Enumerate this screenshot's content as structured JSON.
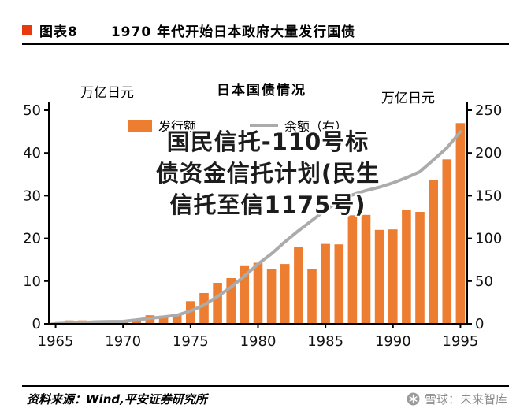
{
  "header": {
    "tag": "图表8",
    "title": "1970 年代开始日本政府大量发行国债"
  },
  "watermark": {
    "lines": [
      "国民信托-110号标",
      "债资金信托计划(民生",
      "信托至信1175号)"
    ]
  },
  "footer": {
    "source": "资料来源：Wind,平安证券研究所",
    "brand": "雪球：未来智库",
    "brand_icon": "xueqiu-snowball-icon"
  },
  "chart_data": {
    "type": "bar+line",
    "title": "日本国债情况",
    "grid": false,
    "legend_position": "top",
    "x": [
      1965,
      1966,
      1967,
      1968,
      1969,
      1970,
      1971,
      1972,
      1973,
      1974,
      1975,
      1976,
      1977,
      1978,
      1979,
      1980,
      1981,
      1982,
      1983,
      1984,
      1985,
      1986,
      1987,
      1988,
      1989,
      1990,
      1991,
      1992,
      1993,
      1994,
      1995
    ],
    "x_ticks": [
      1965,
      1970,
      1975,
      1980,
      1985,
      1990,
      1995
    ],
    "left_axis": {
      "unit": "万亿日元",
      "range": [
        0,
        50
      ],
      "ticks": [
        0,
        10,
        20,
        30,
        40,
        50
      ]
    },
    "right_axis": {
      "unit": "万亿日元",
      "range": [
        0,
        250
      ],
      "ticks": [
        0,
        50,
        100,
        150,
        200,
        250
      ]
    },
    "series": [
      {
        "name": "发行额",
        "type": "bar",
        "axis": "left",
        "color": "#ED7D31",
        "values": [
          0.3,
          0.8,
          0.8,
          0.6,
          0.4,
          0.35,
          1.2,
          2.0,
          1.7,
          2.2,
          5.3,
          7.2,
          9.6,
          10.7,
          13.5,
          14.3,
          12.9,
          14.0,
          18.0,
          12.8,
          18.7,
          18.6,
          25.4,
          25.5,
          22.0,
          22.1,
          26.6,
          26.2,
          33.6,
          38.5,
          47.0
        ]
      },
      {
        "name": "余额（右）",
        "type": "line",
        "axis": "right",
        "color": "#ABABAB",
        "values": [
          0.2,
          0.9,
          1.7,
          2.3,
          2.7,
          2.8,
          4.5,
          6.5,
          8,
          10,
          15,
          22,
          32,
          43,
          56,
          70,
          82,
          96,
          109,
          121,
          133,
          144,
          151,
          156,
          160,
          165,
          171,
          178,
          192,
          206,
          225
        ]
      }
    ]
  }
}
